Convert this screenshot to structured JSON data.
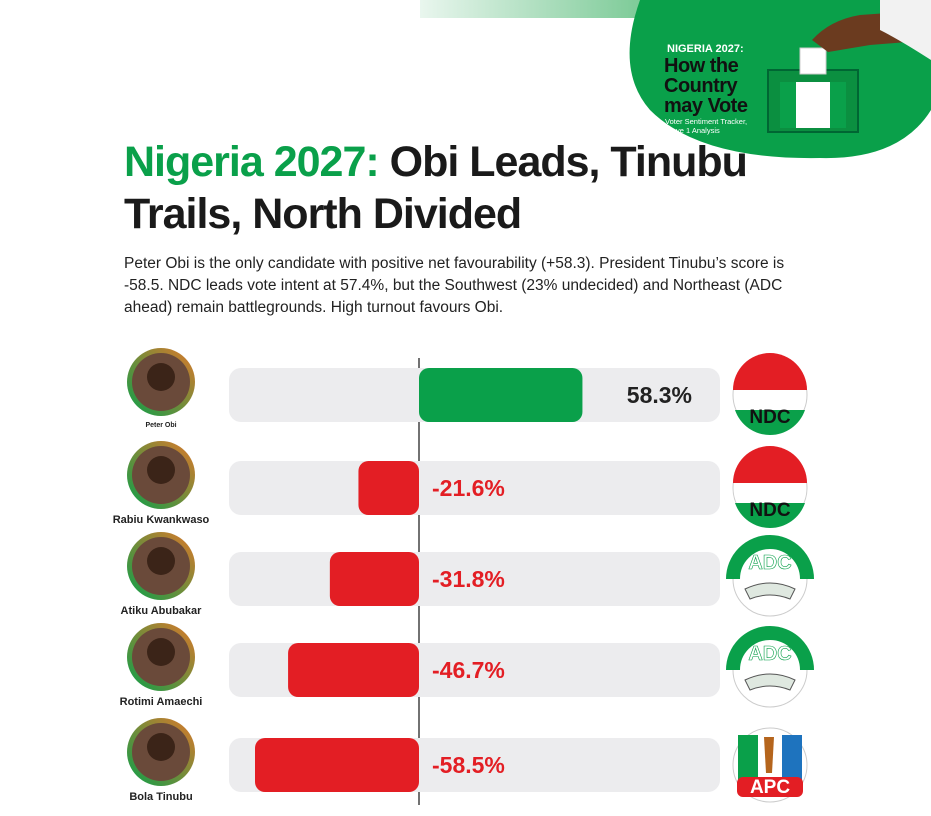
{
  "badge": {
    "kicker": "NIGERIA 2027:",
    "title": "How the Country may Vote",
    "subtitle": "Voter Sentiment Tracker, Wave 1 Analysis"
  },
  "chart_data": {
    "type": "bar",
    "orientation": "horizontal",
    "title_prefix": "Nigeria 2027:",
    "title": "Obi Leads, Tinubu Trails, North Divided",
    "subtitle": "Peter Obi is the only candidate with positive net favourability (+58.3). President Tinubu’s score is -58.5. NDC leads vote intent at 57.4%, but the Southwest (23% undecided) and Northeast (ADC ahead) remain battlegrounds. High turnout favours Obi.",
    "categories": [
      "Peter Obi",
      "Rabiu Kwankwaso",
      "Atiku Abubakar",
      "Rotimi Amaechi",
      "Bola Tinubu"
    ],
    "values": [
      58.3,
      -21.6,
      -31.8,
      -46.7,
      -58.5
    ],
    "value_labels": [
      "58.3%",
      "-21.6%",
      "-31.8%",
      "-46.7%",
      "-58.5%"
    ],
    "parties": [
      "NDC",
      "NDC",
      "ADC",
      "ADC",
      "APC"
    ],
    "positive_color": "#0aa04a",
    "negative_color": "#e31e24"
  }
}
